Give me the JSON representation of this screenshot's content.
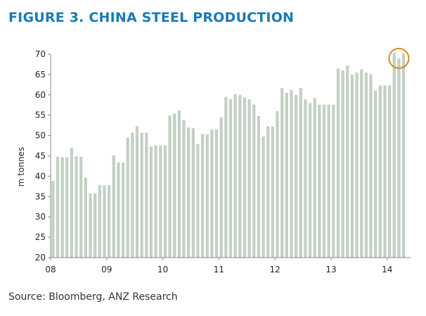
{
  "chart_data": {
    "type": "bar",
    "title": "FIGURE 3. CHINA STEEL PRODUCTION",
    "ylabel": "m tonnes",
    "xlabel": "",
    "ylim": [
      20,
      70
    ],
    "yticks": [
      20,
      25,
      30,
      35,
      40,
      45,
      50,
      55,
      60,
      65,
      70
    ],
    "xticks": [
      "08",
      "09",
      "10",
      "11",
      "12",
      "13",
      "14"
    ],
    "x_start": "2008-01",
    "bar_color": "#c3d1c4",
    "highlight_color": "#d98a1e",
    "highlight_note": "circle around last three bars (2014)",
    "grid": false,
    "values": [
      38.9,
      44.8,
      44.7,
      44.7,
      47.0,
      44.9,
      44.8,
      39.7,
      35.8,
      35.8,
      37.8,
      37.8,
      37.8,
      45.1,
      43.4,
      43.4,
      49.5,
      50.7,
      52.3,
      50.7,
      50.7,
      47.3,
      47.6,
      47.6,
      47.6,
      54.9,
      55.4,
      56.2,
      53.8,
      52.0,
      51.8,
      47.9,
      50.4,
      50.3,
      51.5,
      51.5,
      54.5,
      59.5,
      59.0,
      60.2,
      60.0,
      59.4,
      58.9,
      57.6,
      54.8,
      49.8,
      52.3,
      52.2,
      56.0,
      61.7,
      60.5,
      61.2,
      60.0,
      61.7,
      58.9,
      58.0,
      59.2,
      57.6,
      57.6,
      57.6,
      57.6,
      66.5,
      66.0,
      67.2,
      65.0,
      65.5,
      66.3,
      65.5,
      65.1,
      61.0,
      62.3,
      62.3,
      62.3,
      70.3,
      69.0,
      70.2
    ]
  },
  "source": "Source: Bloomberg, ANZ Research"
}
